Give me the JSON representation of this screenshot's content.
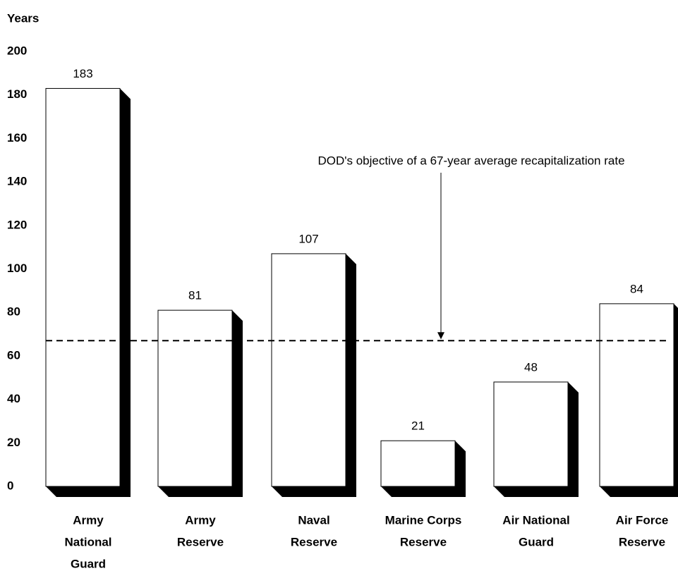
{
  "chart_data": {
    "type": "bar",
    "y_label": "Years",
    "categories": [
      [
        "Army",
        "National",
        "Guard"
      ],
      [
        "Army",
        "Reserve"
      ],
      [
        "Naval",
        "Reserve"
      ],
      [
        "Marine Corps",
        "Reserve"
      ],
      [
        "Air National",
        "Guard"
      ],
      [
        "Air Force",
        "Reserve"
      ]
    ],
    "values": [
      183,
      81,
      107,
      21,
      48,
      84
    ],
    "color": "#ffffff",
    "shadow_color": "#000000",
    "ylim": [
      0,
      200
    ],
    "yticks": [
      0,
      20,
      40,
      60,
      80,
      100,
      120,
      140,
      160,
      180,
      200
    ],
    "reference_line": {
      "value": 67,
      "label": "DOD's objective of a 67-year average recapitalization rate"
    }
  }
}
